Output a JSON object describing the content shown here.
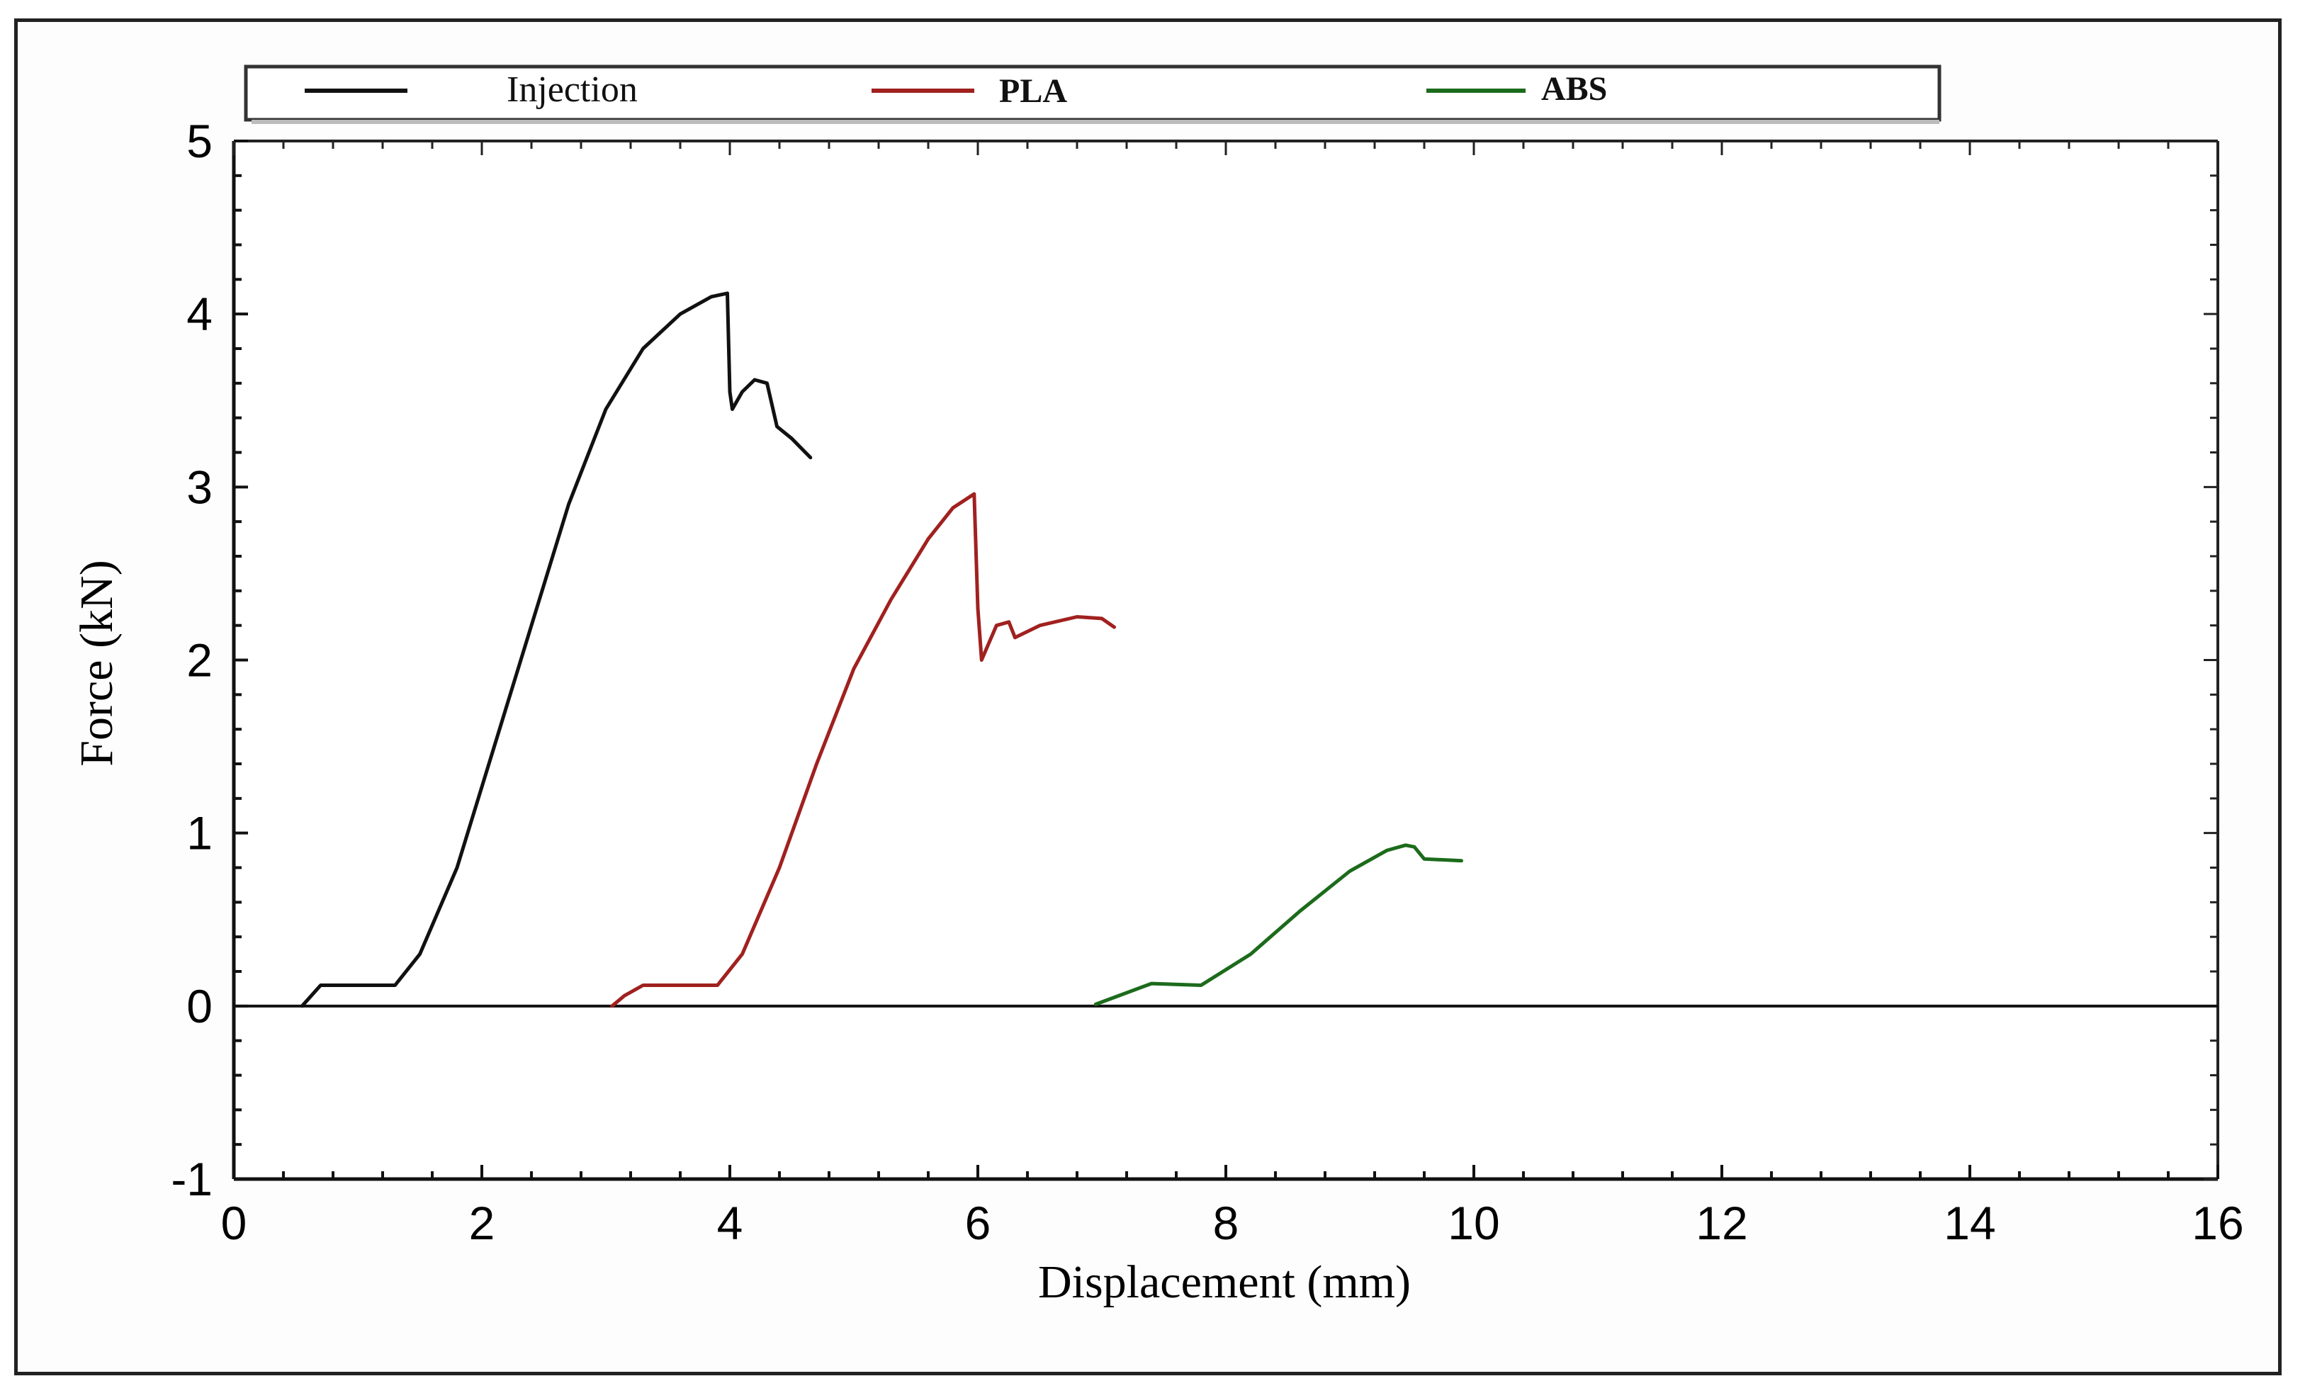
{
  "chart_data": {
    "type": "line",
    "title": "",
    "xlabel": "Displacement (mm)",
    "ylabel": "Force (kN)",
    "xlim": [
      0,
      16
    ],
    "ylim": [
      -1,
      5
    ],
    "xticks": [
      0,
      2,
      4,
      6,
      8,
      10,
      12,
      14,
      16
    ],
    "yticks": [
      -1,
      0,
      1,
      2,
      3,
      4,
      5
    ],
    "grid": false,
    "legend_position": "top",
    "series": [
      {
        "name": "Injection",
        "color": "#111111",
        "points": [
          [
            0.55,
            0.0
          ],
          [
            0.7,
            0.12
          ],
          [
            1.3,
            0.12
          ],
          [
            1.5,
            0.3
          ],
          [
            1.8,
            0.8
          ],
          [
            2.1,
            1.5
          ],
          [
            2.4,
            2.2
          ],
          [
            2.7,
            2.9
          ],
          [
            3.0,
            3.45
          ],
          [
            3.3,
            3.8
          ],
          [
            3.6,
            4.0
          ],
          [
            3.85,
            4.1
          ],
          [
            3.98,
            4.12
          ],
          [
            4.0,
            3.55
          ],
          [
            4.02,
            3.45
          ],
          [
            4.1,
            3.55
          ],
          [
            4.2,
            3.62
          ],
          [
            4.3,
            3.6
          ],
          [
            4.38,
            3.35
          ],
          [
            4.5,
            3.28
          ],
          [
            4.65,
            3.17
          ]
        ]
      },
      {
        "name": "PLA",
        "color": "#a0211f",
        "points": [
          [
            3.05,
            0.0
          ],
          [
            3.15,
            0.06
          ],
          [
            3.3,
            0.12
          ],
          [
            3.9,
            0.12
          ],
          [
            4.1,
            0.3
          ],
          [
            4.4,
            0.8
          ],
          [
            4.7,
            1.4
          ],
          [
            5.0,
            1.95
          ],
          [
            5.3,
            2.35
          ],
          [
            5.6,
            2.7
          ],
          [
            5.8,
            2.88
          ],
          [
            5.97,
            2.96
          ],
          [
            6.0,
            2.3
          ],
          [
            6.03,
            2.0
          ],
          [
            6.15,
            2.2
          ],
          [
            6.25,
            2.22
          ],
          [
            6.3,
            2.13
          ],
          [
            6.5,
            2.2
          ],
          [
            6.8,
            2.25
          ],
          [
            7.0,
            2.24
          ],
          [
            7.1,
            2.19
          ]
        ]
      },
      {
        "name": "ABS",
        "color": "#1c6b1c",
        "points": [
          [
            6.95,
            0.01
          ],
          [
            7.1,
            0.05
          ],
          [
            7.4,
            0.13
          ],
          [
            7.8,
            0.12
          ],
          [
            8.2,
            0.3
          ],
          [
            8.6,
            0.55
          ],
          [
            9.0,
            0.78
          ],
          [
            9.3,
            0.9
          ],
          [
            9.45,
            0.93
          ],
          [
            9.52,
            0.92
          ],
          [
            9.6,
            0.85
          ],
          [
            9.9,
            0.84
          ]
        ]
      }
    ]
  }
}
